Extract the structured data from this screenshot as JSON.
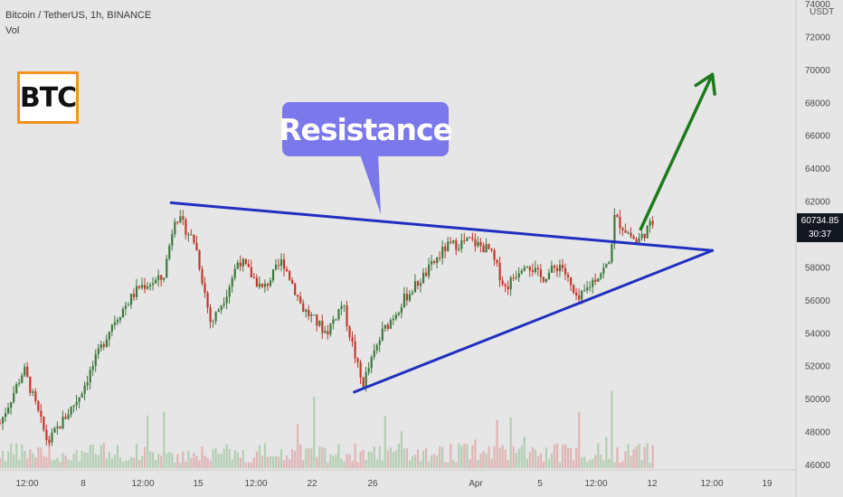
{
  "header": {
    "title": "Bitcoin / TetherUS, 1h, BINANCE",
    "volume_label": "Vol"
  },
  "badge": {
    "text": "BTC",
    "border_color": "#f7931a"
  },
  "annotation": {
    "text": "Resistance",
    "color": "#7a78ea"
  },
  "price_tag": {
    "price": "60734.85",
    "countdown": "30:37"
  },
  "price_axis": {
    "unit": "USDT"
  },
  "colors": {
    "background": "#e6e6e6",
    "trendline": "#1f2fbf",
    "arrow": "#1c7a1c",
    "up_candle": "#3c7a3c",
    "down_candle": "#c0392b"
  },
  "chart_data": {
    "type": "candlestick",
    "y_axis": {
      "min": 46000,
      "max": 74000,
      "ticks": [
        "74000",
        "72000",
        "70000",
        "68000",
        "66000",
        "64000",
        "62000",
        "60000",
        "58000",
        "56000",
        "54000",
        "52000",
        "50000",
        "48000",
        "46000"
      ]
    },
    "x_axis": {
      "ticks": [
        "12:00",
        "8",
        "12:00",
        "15",
        "12:00",
        "22",
        "26",
        "Apr",
        "5",
        "12:00",
        "12",
        "12:00",
        "19"
      ]
    },
    "price_path": [
      {
        "t": 0,
        "p": 48500
      },
      {
        "t": 0.03,
        "p": 51800
      },
      {
        "t": 0.06,
        "p": 47300
      },
      {
        "t": 0.1,
        "p": 50200
      },
      {
        "t": 0.14,
        "p": 54500
      },
      {
        "t": 0.175,
        "p": 56800
      },
      {
        "t": 0.205,
        "p": 57300
      },
      {
        "t": 0.22,
        "p": 61200
      },
      {
        "t": 0.245,
        "p": 59500
      },
      {
        "t": 0.265,
        "p": 54500
      },
      {
        "t": 0.285,
        "p": 56500
      },
      {
        "t": 0.3,
        "p": 58500
      },
      {
        "t": 0.33,
        "p": 56600
      },
      {
        "t": 0.355,
        "p": 58400
      },
      {
        "t": 0.38,
        "p": 55500
      },
      {
        "t": 0.41,
        "p": 54000
      },
      {
        "t": 0.43,
        "p": 55800
      },
      {
        "t": 0.455,
        "p": 50800
      },
      {
        "t": 0.48,
        "p": 54000
      },
      {
        "t": 0.51,
        "p": 56200
      },
      {
        "t": 0.535,
        "p": 57600
      },
      {
        "t": 0.56,
        "p": 59200
      },
      {
        "t": 0.59,
        "p": 59600
      },
      {
        "t": 0.615,
        "p": 59000
      },
      {
        "t": 0.635,
        "p": 56700
      },
      {
        "t": 0.66,
        "p": 58400
      },
      {
        "t": 0.68,
        "p": 57300
      },
      {
        "t": 0.705,
        "p": 58200
      },
      {
        "t": 0.725,
        "p": 55800
      },
      {
        "t": 0.745,
        "p": 57200
      },
      {
        "t": 0.765,
        "p": 58200
      },
      {
        "t": 0.772,
        "p": 61000
      },
      {
        "t": 0.8,
        "p": 59500
      },
      {
        "t": 0.82,
        "p": 60700
      }
    ],
    "trendlines": [
      {
        "name": "resistance",
        "from": {
          "x": 0.215,
          "price": 61900
        },
        "to": {
          "x": 0.895,
          "price": 59000
        }
      },
      {
        "name": "support",
        "from": {
          "x": 0.445,
          "price": 50400
        },
        "to": {
          "x": 0.895,
          "price": 59000
        }
      }
    ],
    "projection_arrow": {
      "from": {
        "x": 0.805,
        "price": 60300
      },
      "to": {
        "x": 0.895,
        "price": 69700
      }
    },
    "grid": false,
    "legend": "none"
  }
}
